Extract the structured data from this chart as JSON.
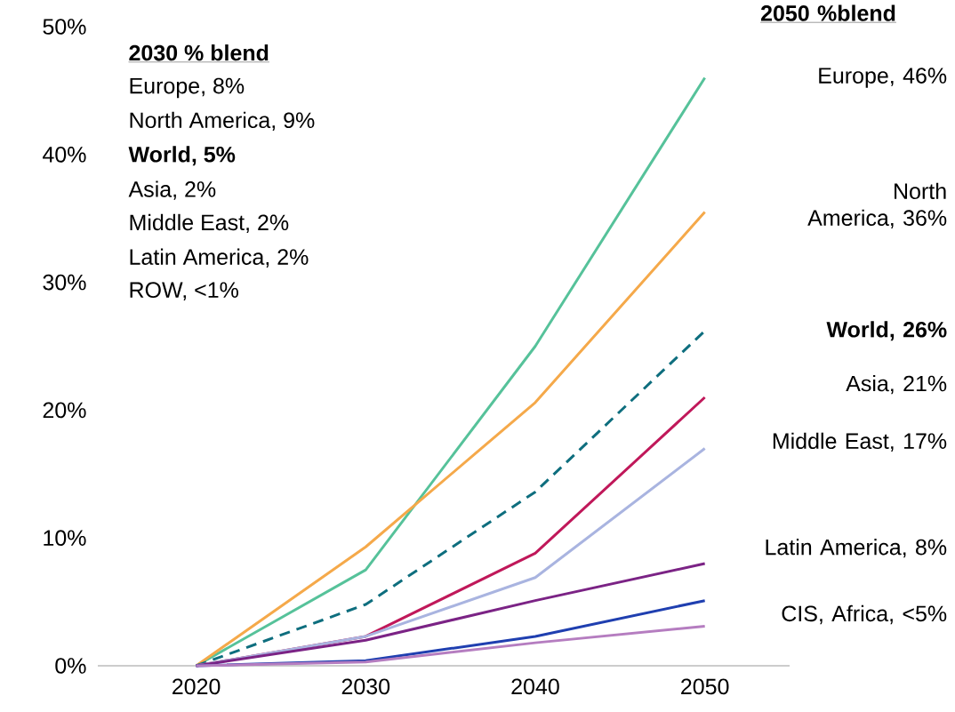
{
  "chart_data": {
    "type": "line",
    "categories": [
      "2020",
      "2030",
      "2040",
      "2050"
    ],
    "series": [
      {
        "color": "#56c29a",
        "values": [
          0,
          7.5,
          25,
          46
        ]
      },
      {
        "color": "#f5a94a",
        "values": [
          0,
          9.3,
          20.6,
          35.5
        ]
      },
      {
        "color": "#0e6e7e",
        "line_style": "dashed",
        "values": [
          0,
          4.8,
          13.6,
          26.2
        ]
      },
      {
        "color": "#c0185a",
        "values": [
          0,
          2.3,
          8.8,
          21
        ]
      },
      {
        "color": "#a9b4e0",
        "values": [
          0,
          2.3,
          6.9,
          17
        ]
      },
      {
        "color": "#7b2385",
        "values": [
          0,
          2.0,
          5.1,
          8.0
        ]
      },
      {
        "color": "#1f3fb0",
        "values": [
          0,
          0.4,
          2.3,
          5.1
        ]
      },
      {
        "color": "#b57dc0",
        "values": [
          0,
          0.3,
          1.8,
          3.1
        ]
      }
    ],
    "ylim": [
      0,
      50
    ],
    "yticks": [
      {
        "value": 0,
        "label": "0%"
      },
      {
        "value": 10,
        "label": "10%"
      },
      {
        "value": 20,
        "label": "20%"
      },
      {
        "value": 30,
        "label": "30%"
      },
      {
        "value": 40,
        "label": "40%"
      },
      {
        "value": 50,
        "label": "50%"
      }
    ],
    "grid": false,
    "marker": "none",
    "line_style": "solid",
    "annotations": [
      "2030 % blend",
      "Europe, 8%",
      "North America, 9%",
      "World, 5%",
      "Asia, 2%",
      "Middle East, 2%",
      "Latin America, 2%",
      "ROW, <1%",
      "2050 %blend",
      "Europe, 46%",
      "North America, 36%",
      "World, 26%",
      "Asia, 21%",
      "Middle East, 17%",
      "Latin America, 8%",
      "CIS, Africa, <5%"
    ]
  }
}
